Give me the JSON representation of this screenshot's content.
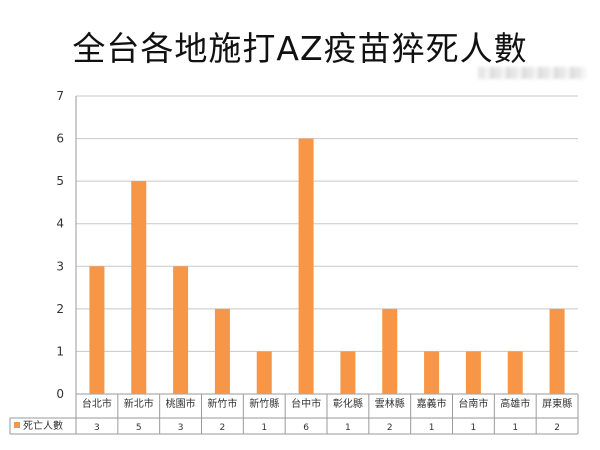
{
  "chart_data": {
    "type": "bar",
    "title": "全台各地施打AZ疫苗猝死人數",
    "categories": [
      "台北市",
      "新北市",
      "桃園市",
      "新竹市",
      "新竹縣",
      "台中市",
      "彰化縣",
      "雲林縣",
      "嘉義市",
      "台南市",
      "高雄市",
      "屏東縣"
    ],
    "series": [
      {
        "name": "死亡人數",
        "values": [
          3,
          5,
          3,
          2,
          1,
          6,
          1,
          2,
          1,
          1,
          1,
          2
        ]
      }
    ],
    "ylim": [
      0,
      7
    ],
    "yticks": [
      0,
      1,
      2,
      3,
      4,
      5,
      6,
      7
    ],
    "grid": true,
    "legend": "data-table",
    "bar_color": "#F79646"
  }
}
